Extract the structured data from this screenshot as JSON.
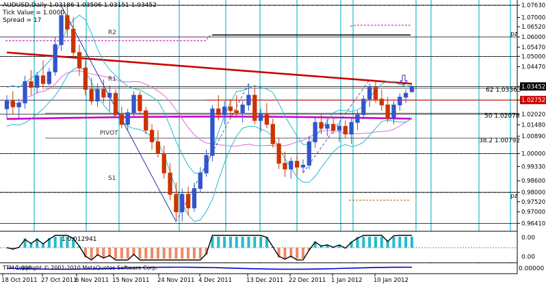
{
  "header": {
    "symbol_line": "AUDUSD,Daily  1.03186 1.03506 1.03151 1.03452",
    "tick_value": "Tick Value = 1.0000",
    "spread": "Spread = 17"
  },
  "price_axis": {
    "labels": [
      "1.07630",
      "1.07000",
      "1.06520",
      "1.06000",
      "1.05470",
      "1.05000",
      "1.04470",
      "1.03452",
      "1.02752",
      "1.02020",
      "1.01480",
      "1.00890",
      "1.00000",
      "0.99330",
      "0.98600",
      "0.98000",
      "0.97520",
      "0.97000",
      "0.96410"
    ],
    "current_price": "1.03452",
    "ref_price": "1.02752",
    "current_color": "#000000",
    "ref_color": "#cc0000"
  },
  "pivot_labels": {
    "r2": "R2",
    "r1": "R1",
    "pivot": "PIVOT",
    "s1": "S1",
    "pz": "pz"
  },
  "fib_labels": {
    "fib62": "62  1.03363",
    "fib50": "50  1.02078",
    "fib38": "38.2  1.00792"
  },
  "subwindow": {
    "indicator_label": "1 0.012941",
    "axis_top": "0.00",
    "axis_bottom": "0.00",
    "copyright": "Copyright © 2001-2010 MetaQuotes Software Corp."
  },
  "subwindow2": {
    "label": "TTM 1.000",
    "axis": "0.00000"
  },
  "date_axis": {
    "labels": [
      "18 Oct 2011",
      "27 Oct 2011",
      "6 Nov 2011",
      "15 Nov 2011",
      "24 Nov 2011",
      "4 Dec 2011",
      "13 Dec 2011",
      "22 Dec 2011",
      "1 Jan 2012",
      "10 Jan 2012"
    ]
  },
  "colors": {
    "bull": "#3355cc",
    "bear": "#cc3300",
    "cyan": "#22bbcc",
    "red_ma": "#cc0000",
    "magenta_ma": "#cc00cc"
  },
  "chart_data": {
    "type": "candlestick",
    "symbol": "AUDUSD",
    "timeframe": "Daily",
    "ohlc_last": {
      "open": 1.03186,
      "high": 1.03506,
      "low": 1.03151,
      "close": 1.03452
    },
    "ylim": [
      0.96,
      1.079
    ],
    "candles": [
      {
        "o": 1.023,
        "h": 1.03,
        "l": 1.018,
        "c": 1.027
      },
      {
        "o": 1.027,
        "h": 1.032,
        "l": 1.02,
        "c": 1.024
      },
      {
        "o": 1.024,
        "h": 1.028,
        "l": 1.018,
        "c": 1.026
      },
      {
        "o": 1.026,
        "h": 1.04,
        "l": 1.023,
        "c": 1.037
      },
      {
        "o": 1.037,
        "h": 1.043,
        "l": 1.03,
        "c": 1.034
      },
      {
        "o": 1.034,
        "h": 1.042,
        "l": 1.031,
        "c": 1.04
      },
      {
        "o": 1.04,
        "h": 1.048,
        "l": 1.033,
        "c": 1.036
      },
      {
        "o": 1.036,
        "h": 1.044,
        "l": 1.035,
        "c": 1.042
      },
      {
        "o": 1.042,
        "h": 1.06,
        "l": 1.04,
        "c": 1.056
      },
      {
        "o": 1.056,
        "h": 1.074,
        "l": 1.053,
        "c": 1.071
      },
      {
        "o": 1.071,
        "h": 1.076,
        "l": 1.06,
        "c": 1.064
      },
      {
        "o": 1.064,
        "h": 1.07,
        "l": 1.049,
        "c": 1.052
      },
      {
        "o": 1.052,
        "h": 1.056,
        "l": 1.04,
        "c": 1.044
      },
      {
        "o": 1.044,
        "h": 1.048,
        "l": 1.03,
        "c": 1.033
      },
      {
        "o": 1.033,
        "h": 1.039,
        "l": 1.025,
        "c": 1.027
      },
      {
        "o": 1.027,
        "h": 1.036,
        "l": 1.024,
        "c": 1.033
      },
      {
        "o": 1.033,
        "h": 1.038,
        "l": 1.026,
        "c": 1.029
      },
      {
        "o": 1.029,
        "h": 1.035,
        "l": 1.022,
        "c": 1.031
      },
      {
        "o": 1.031,
        "h": 1.033,
        "l": 1.018,
        "c": 1.02
      },
      {
        "o": 1.02,
        "h": 1.024,
        "l": 1.013,
        "c": 1.015
      },
      {
        "o": 1.015,
        "h": 1.023,
        "l": 1.012,
        "c": 1.021
      },
      {
        "o": 1.021,
        "h": 1.032,
        "l": 1.019,
        "c": 1.03
      },
      {
        "o": 1.03,
        "h": 1.032,
        "l": 1.02,
        "c": 1.022
      },
      {
        "o": 1.022,
        "h": 1.024,
        "l": 1.01,
        "c": 1.012
      },
      {
        "o": 1.012,
        "h": 1.015,
        "l": 1.002,
        "c": 1.006
      },
      {
        "o": 1.006,
        "h": 1.012,
        "l": 0.998,
        "c": 1.0
      },
      {
        "o": 1.0,
        "h": 1.004,
        "l": 0.987,
        "c": 0.99
      },
      {
        "o": 0.99,
        "h": 0.995,
        "l": 0.976,
        "c": 0.979
      },
      {
        "o": 0.979,
        "h": 0.985,
        "l": 0.966,
        "c": 0.97
      },
      {
        "o": 0.97,
        "h": 0.982,
        "l": 0.965,
        "c": 0.979
      },
      {
        "o": 0.979,
        "h": 0.983,
        "l": 0.968,
        "c": 0.972
      },
      {
        "o": 0.972,
        "h": 0.985,
        "l": 0.97,
        "c": 0.982
      },
      {
        "o": 0.982,
        "h": 0.993,
        "l": 0.98,
        "c": 0.99
      },
      {
        "o": 0.99,
        "h": 1.002,
        "l": 0.988,
        "c": 0.999
      },
      {
        "o": 0.999,
        "h": 1.025,
        "l": 0.996,
        "c": 1.023
      },
      {
        "o": 1.023,
        "h": 1.03,
        "l": 1.017,
        "c": 1.02
      },
      {
        "o": 1.02,
        "h": 1.027,
        "l": 1.015,
        "c": 1.024
      },
      {
        "o": 1.024,
        "h": 1.028,
        "l": 1.018,
        "c": 1.022
      },
      {
        "o": 1.022,
        "h": 1.03,
        "l": 1.019,
        "c": 1.021
      },
      {
        "o": 1.021,
        "h": 1.027,
        "l": 1.016,
        "c": 1.025
      },
      {
        "o": 1.025,
        "h": 1.036,
        "l": 1.022,
        "c": 1.03
      },
      {
        "o": 1.03,
        "h": 1.034,
        "l": 1.015,
        "c": 1.017
      },
      {
        "o": 1.017,
        "h": 1.023,
        "l": 1.011,
        "c": 1.02
      },
      {
        "o": 1.02,
        "h": 1.026,
        "l": 1.013,
        "c": 1.015
      },
      {
        "o": 1.015,
        "h": 1.018,
        "l": 1.003,
        "c": 1.005
      },
      {
        "o": 1.005,
        "h": 1.008,
        "l": 0.992,
        "c": 0.995
      },
      {
        "o": 0.995,
        "h": 1.001,
        "l": 0.988,
        "c": 0.992
      },
      {
        "o": 0.992,
        "h": 0.998,
        "l": 0.987,
        "c": 0.996
      },
      {
        "o": 0.996,
        "h": 0.999,
        "l": 0.989,
        "c": 0.993
      },
      {
        "o": 0.993,
        "h": 0.997,
        "l": 0.99,
        "c": 0.994
      },
      {
        "o": 0.994,
        "h": 1.009,
        "l": 0.992,
        "c": 1.006
      },
      {
        "o": 1.006,
        "h": 1.019,
        "l": 1.003,
        "c": 1.016
      },
      {
        "o": 1.016,
        "h": 1.02,
        "l": 1.01,
        "c": 1.013
      },
      {
        "o": 1.013,
        "h": 1.018,
        "l": 1.009,
        "c": 1.015
      },
      {
        "o": 1.015,
        "h": 1.019,
        "l": 1.01,
        "c": 1.012
      },
      {
        "o": 1.012,
        "h": 1.016,
        "l": 1.006,
        "c": 1.014
      },
      {
        "o": 1.014,
        "h": 1.017,
        "l": 1.008,
        "c": 1.01
      },
      {
        "o": 1.01,
        "h": 1.018,
        "l": 1.005,
        "c": 1.016
      },
      {
        "o": 1.016,
        "h": 1.022,
        "l": 1.012,
        "c": 1.02
      },
      {
        "o": 1.02,
        "h": 1.03,
        "l": 1.018,
        "c": 1.028
      },
      {
        "o": 1.028,
        "h": 1.036,
        "l": 1.024,
        "c": 1.034
      },
      {
        "o": 1.034,
        "h": 1.038,
        "l": 1.026,
        "c": 1.028
      },
      {
        "o": 1.028,
        "h": 1.033,
        "l": 1.022,
        "c": 1.025
      },
      {
        "o": 1.025,
        "h": 1.029,
        "l": 1.016,
        "c": 1.018
      },
      {
        "o": 1.018,
        "h": 1.027,
        "l": 1.015,
        "c": 1.025
      },
      {
        "o": 1.025,
        "h": 1.031,
        "l": 1.022,
        "c": 1.029
      },
      {
        "o": 1.029,
        "h": 1.033,
        "l": 1.026,
        "c": 1.031
      },
      {
        "o": 1.0318,
        "h": 1.035,
        "l": 1.0315,
        "c": 1.0345
      }
    ]
  }
}
